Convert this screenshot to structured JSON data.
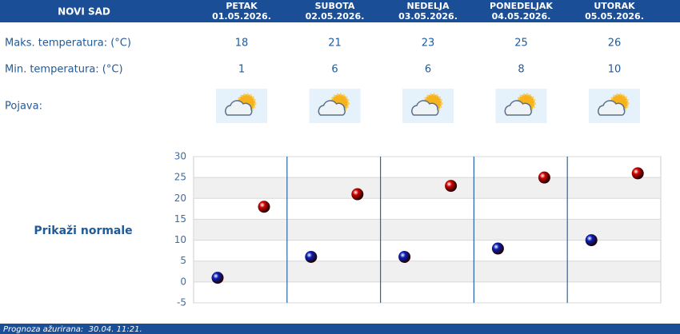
{
  "table": {
    "city": "NOVI SAD",
    "days": [
      {
        "name": "PETAK",
        "date": "01.05.2026."
      },
      {
        "name": "SUBOTA",
        "date": "02.05.2026."
      },
      {
        "name": "NEDELJA",
        "date": "03.05.2026."
      },
      {
        "name": "PONEDELJAK",
        "date": "04.05.2026."
      },
      {
        "name": "UTORAK",
        "date": "05.05.2026."
      }
    ],
    "weather_label": "Pojava:"
  },
  "chart_data": {
    "type": "scatter",
    "series": [
      {
        "name": "Maks. temperatura: (°C)",
        "color": "#d00000",
        "values": [
          18,
          21,
          23,
          25,
          26
        ]
      },
      {
        "name": "Min. temperatura: (°C)",
        "color": "#0a1fb8",
        "values": [
          1,
          6,
          6,
          8,
          10
        ]
      }
    ],
    "ylim": [
      -5,
      30
    ],
    "yticks": [
      -5,
      0,
      5,
      10,
      15,
      20,
      25,
      30
    ],
    "grid": true
  },
  "link": "Prikaži normale",
  "footer": "Prognoza ažurirana:  30.04. 11:21."
}
